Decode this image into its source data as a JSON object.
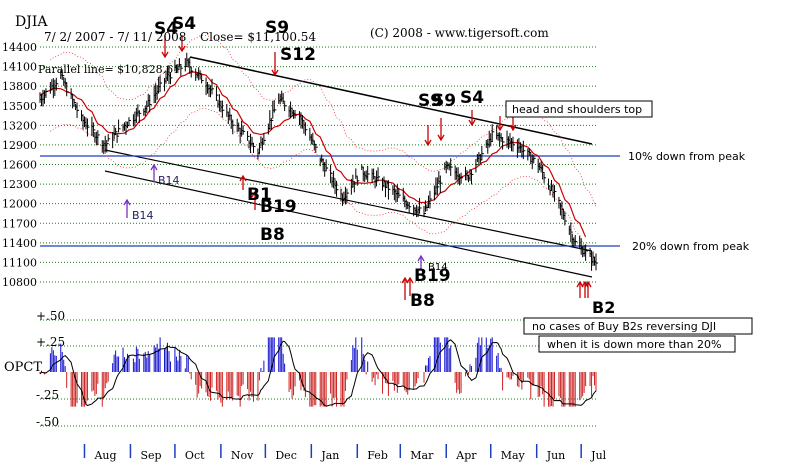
{
  "header": {
    "title": "DJIA",
    "range": "7/ 2/ 2007 -  7/ 11/ 2008",
    "close": "Close= $11,100.54",
    "copyright": "(C) 2008 - www.tigersoft.com",
    "parallel_line": "Parallel line= $10,828.61"
  },
  "colors": {
    "price": "#000000",
    "ma": "#cc0000",
    "band": "#ee3333",
    "arrow": "#cc0000",
    "buy_arrow": "#7b2fbf",
    "hist_pos": "#1111cc",
    "hist_neg": "#cc2222",
    "grid": "#1a7a1a",
    "month_tick": "#1a3fbf",
    "peak_line": "#1a3fbf"
  },
  "chart_data": [
    {
      "type": "line",
      "name": "price",
      "yticks": [
        14400,
        14100,
        13800,
        13500,
        13200,
        12900,
        12600,
        12300,
        12000,
        11700,
        11400,
        11100,
        10800
      ],
      "ylim": [
        10800,
        14400
      ],
      "months": [
        "Aug",
        "Sep",
        "Oct",
        "Nov",
        "Dec",
        "Jan",
        "Feb",
        "Mar",
        "Apr",
        "May",
        "Jun",
        "Jul"
      ],
      "x": [
        "2007-07-02",
        "2007-07-16",
        "2007-07-30",
        "2007-08-15",
        "2007-08-28",
        "2007-09-12",
        "2007-09-26",
        "2007-10-09",
        "2007-10-22",
        "2007-11-07",
        "2007-11-26",
        "2007-12-10",
        "2007-12-24",
        "2008-01-09",
        "2008-01-22",
        "2008-02-04",
        "2008-02-19",
        "2008-03-03",
        "2008-03-10",
        "2008-03-17",
        "2008-04-01",
        "2008-04-15",
        "2008-04-29",
        "2008-05-02",
        "2008-05-19",
        "2008-06-02",
        "2008-06-16",
        "2008-06-27",
        "2008-07-11"
      ],
      "series": [
        {
          "values": [
            13600,
            13950,
            13300,
            12900,
            13200,
            13500,
            13950,
            14150,
            13850,
            13300,
            12800,
            13600,
            13350,
            12600,
            12100,
            12500,
            12300,
            12050,
            11950,
            11850,
            12550,
            12400,
            12900,
            13050,
            12900,
            12600,
            12000,
            11400,
            11100
          ]
        }
      ],
      "annotations": [
        {
          "label": "S4",
          "x": "2007-09-24"
        },
        {
          "label": "S4",
          "x": "2007-10-02"
        },
        {
          "label": "S9",
          "x": "2007-11-01"
        },
        {
          "label": "S12",
          "x": "2007-11-07"
        },
        {
          "label": "B14",
          "x": "2007-08-14"
        },
        {
          "label": "B14",
          "x": "2007-08-21"
        },
        {
          "label": "B1",
          "x": "2007-11-20"
        },
        {
          "label": "B19",
          "x": "2007-11-22"
        },
        {
          "label": "B8",
          "x": "2007-11-26"
        },
        {
          "label": "S9",
          "x": "2008-04-01"
        },
        {
          "label": "S9",
          "x": "2008-04-02"
        },
        {
          "label": "S4",
          "x": "2008-04-15"
        },
        {
          "label": "B14",
          "x": "2008-03-10"
        },
        {
          "label": "B19",
          "x": "2008-03-11"
        },
        {
          "label": "B8",
          "x": "2008-03-07"
        },
        {
          "label": "B2",
          "x": "2008-07-07"
        },
        {
          "label": "head and shoulders top",
          "x": "2008-05-01"
        },
        {
          "label": "10% down from peak",
          "y": 12735
        },
        {
          "label": "20% down from peak",
          "y": 11320
        },
        {
          "label": "no cases of Buy B2s reversing DJI"
        },
        {
          "label": "when it is down more than 20%"
        }
      ]
    },
    {
      "type": "bar",
      "name": "OPCT",
      "yticks": [
        "+.50",
        "+.25",
        "-.25",
        "-.50"
      ],
      "ylim": [
        -0.5,
        0.5
      ]
    }
  ]
}
